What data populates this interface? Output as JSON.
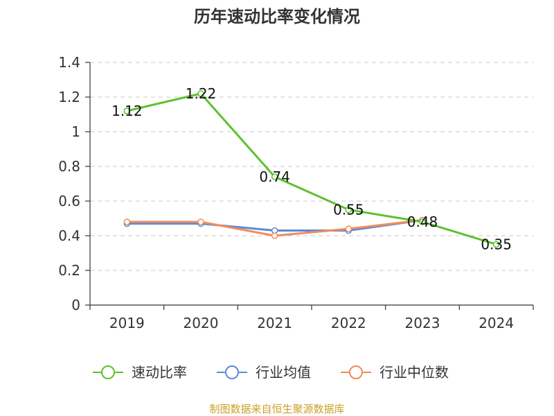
{
  "chart_data": {
    "type": "line",
    "title": "历年速动比率变化情况",
    "categories": [
      "2019",
      "2020",
      "2021",
      "2022",
      "2023",
      "2024"
    ],
    "ylim": [
      0,
      1.4
    ],
    "yticks": [
      "0",
      "0.2",
      "0.4",
      "0.6",
      "0.8",
      "1",
      "1.2",
      "1.4"
    ],
    "ytick_values": [
      0,
      0.2,
      0.4,
      0.6,
      0.8,
      1,
      1.2,
      1.4
    ],
    "grid": true,
    "legend_position": "bottom-center",
    "series": [
      {
        "name": "速动比率",
        "color": "#5cc12f",
        "values": [
          1.12,
          1.22,
          0.74,
          0.55,
          0.48,
          0.35
        ],
        "labels": [
          "1.12",
          "1.22",
          "0.74",
          "0.55",
          "0.48",
          "0.35"
        ]
      },
      {
        "name": "行业均值",
        "color": "#5b8ad8",
        "values": [
          0.47,
          0.47,
          0.43,
          0.43,
          0.49,
          null
        ]
      },
      {
        "name": "行业中位数",
        "color": "#f08c5a",
        "values": [
          0.48,
          0.48,
          0.4,
          0.44,
          0.49,
          null
        ]
      }
    ],
    "source": "制图数据来自恒生聚源数据库"
  }
}
